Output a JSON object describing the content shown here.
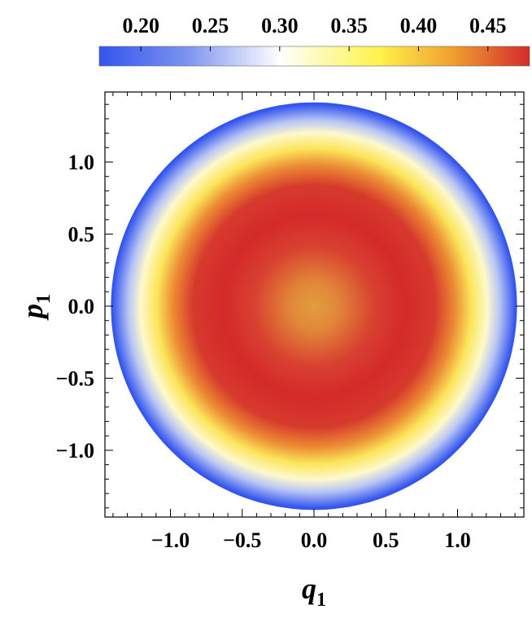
{
  "chart_data": {
    "type": "heatmap",
    "title": "",
    "xlabel": "q",
    "xlabel_sub": "1",
    "ylabel": "p",
    "ylabel_sub": "1",
    "xlim": [
      -1.45,
      1.45
    ],
    "ylim": [
      -1.45,
      1.45
    ],
    "x_ticks": [
      -1.0,
      -0.5,
      0.0,
      0.5,
      1.0
    ],
    "x_tick_labels": [
      "−1.0",
      "−0.5",
      "0.0",
      "0.5",
      "1.0"
    ],
    "y_ticks": [
      1.0,
      0.5,
      0.0,
      -0.5,
      -1.0
    ],
    "y_tick_labels": [
      "1.0",
      "0.5",
      "0.0",
      "−0.5",
      "−1.0"
    ],
    "domain_radius": 1.414,
    "color_range": [
      0.17,
      0.48
    ],
    "colorbar_ticks": [
      0.2,
      0.25,
      0.3,
      0.35,
      0.4,
      0.45
    ],
    "colorbar_tick_labels": [
      "0.20",
      "0.25",
      "0.30",
      "0.35",
      "0.40",
      "0.45"
    ],
    "colorbar_position": "top",
    "grid": false,
    "colormap": [
      "#3355ee",
      "#7a92f0",
      "#ffffff",
      "#fff34a",
      "#f0a030",
      "#d42a2a"
    ],
    "radial_profile": {
      "r": [
        0.0,
        0.2,
        0.4,
        0.6,
        0.8,
        1.0,
        1.1,
        1.2,
        1.3,
        1.414
      ],
      "value": [
        0.41,
        0.43,
        0.455,
        0.468,
        0.462,
        0.425,
        0.385,
        0.33,
        0.265,
        0.17
      ]
    }
  }
}
